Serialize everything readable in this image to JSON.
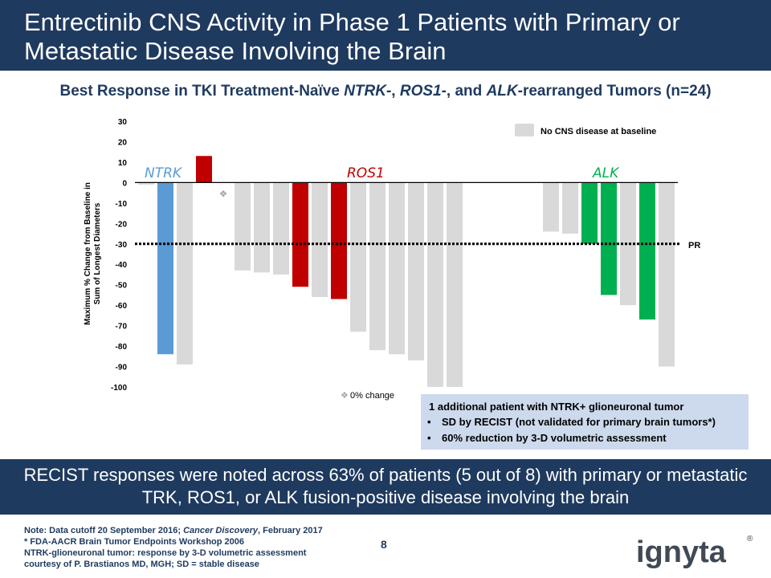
{
  "slide": {
    "title": "Entrectinib CNS Activity in Phase 1 Patients with Primary or\nMetastatic Disease Involving the Brain",
    "subtitle": {
      "p1": "Best Response in TKI Treatment-Naïve ",
      "ntrk": "NTRK",
      "p2": "-, ",
      "ros1": "ROS1",
      "p3": "-, and ",
      "alk": "ALK",
      "p4": "-rearranged Tumors (n=24)"
    },
    "summary": "RECIST responses were noted across 63% of patients (5 out of 8) with primary or metastatic TRK, ROS1, or ALK fusion-positive disease involving the brain",
    "page_number": "8",
    "logo_text": "ignyta",
    "logo_mark": "®",
    "footnotes": {
      "l1a": "Note: Data cutoff 20 September 2016; ",
      "l1b": "Cancer Discovery",
      "l1c": ", February 2017",
      "l2": "* FDA-AACR Brain Tumor Endpoints Workshop 2006",
      "l3": "NTRK-glioneuronal tumor: response by 3-D volumetric assessment",
      "l4": "courtesy of P. Brastianos MD, MGH; SD = stable disease"
    },
    "annotation": {
      "head": "1 additional patient with NTRK+ glioneuronal tumor",
      "bullets": [
        "SD by RECIST (not validated for primary brain tumors*)",
        "60% reduction by 3-D volumetric assessment"
      ]
    }
  },
  "chart_data": {
    "type": "bar",
    "ylabel": "Maximum % Change from Baseline in Sum of Longest Diameters",
    "ylim": [
      -100,
      30
    ],
    "yticks": [
      30,
      20,
      10,
      0,
      -10,
      -20,
      -30,
      -40,
      -50,
      -60,
      -70,
      -80,
      -90,
      -100
    ],
    "reference_line": {
      "value": -30,
      "label": "PR"
    },
    "group_labels": [
      {
        "label": "NTRK",
        "color": "#5b9bd5"
      },
      {
        "label": "ROS1",
        "color": "#c00000"
      },
      {
        "label": "ALK",
        "color": "#00b050"
      }
    ],
    "legend": {
      "label": "No CNS disease at baseline",
      "color": "#d9d9d9",
      "position": "top-right"
    },
    "marker_legend": {
      "symbol": "❖",
      "label": "0% change"
    },
    "bars": [
      {
        "group": "NTRK",
        "value": -1,
        "cns": false
      },
      {
        "group": "NTRK",
        "value": -84,
        "cns": true
      },
      {
        "group": "NTRK",
        "value": -89,
        "cns": false
      },
      {
        "group": "ROS1",
        "value": 13,
        "cns": true
      },
      {
        "group": "ROS1",
        "value": 0,
        "cns": true,
        "marker": true
      },
      {
        "group": "ROS1",
        "value": -43,
        "cns": false
      },
      {
        "group": "ROS1",
        "value": -44,
        "cns": false
      },
      {
        "group": "ROS1",
        "value": -45,
        "cns": false
      },
      {
        "group": "ROS1",
        "value": -51,
        "cns": true
      },
      {
        "group": "ROS1",
        "value": -56,
        "cns": false
      },
      {
        "group": "ROS1",
        "value": -57,
        "cns": true
      },
      {
        "group": "ROS1",
        "value": -73,
        "cns": false
      },
      {
        "group": "ROS1",
        "value": -82,
        "cns": false
      },
      {
        "group": "ROS1",
        "value": -84,
        "cns": false
      },
      {
        "group": "ROS1",
        "value": -87,
        "cns": false
      },
      {
        "group": "ROS1",
        "value": -100,
        "cns": false
      },
      {
        "group": "ROS1",
        "value": -100,
        "cns": false
      },
      {
        "group": "ALK",
        "value": -24,
        "cns": false
      },
      {
        "group": "ALK",
        "value": -25,
        "cns": false
      },
      {
        "group": "ALK",
        "value": -30,
        "cns": true
      },
      {
        "group": "ALK",
        "value": -55,
        "cns": true
      },
      {
        "group": "ALK",
        "value": -60,
        "cns": false
      },
      {
        "group": "ALK",
        "value": -67,
        "cns": true
      },
      {
        "group": "ALK",
        "value": -90,
        "cns": false
      }
    ]
  }
}
